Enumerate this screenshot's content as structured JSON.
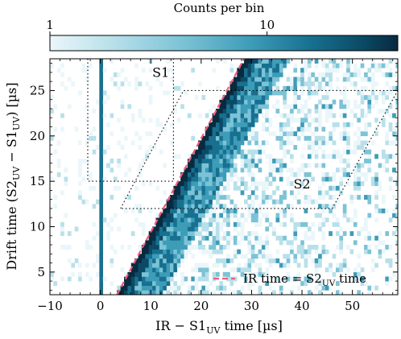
{
  "chart_data": {
    "type": "heatmap",
    "title": "",
    "xlabel": "IR − S1",
    "xlabel_sub": "UV",
    "xlabel_tail": " time [µs]",
    "ylabel_prefix": "Drift time (S2",
    "ylabel_sub1": "UV",
    "ylabel_mid": " − S1",
    "ylabel_sub2": "UV",
    "ylabel_tail": ") [µs]",
    "xlim": [
      -10,
      59
    ],
    "ylim": [
      2.5,
      28.5
    ],
    "xticks": [
      -10,
      0,
      10,
      20,
      30,
      40,
      50
    ],
    "yticks": [
      5,
      10,
      15,
      20,
      25
    ],
    "colorbar": {
      "label": "Counts per bin",
      "scale": "log",
      "range": [
        1,
        40
      ],
      "ticks": [
        1,
        10
      ],
      "tick_labels": [
        "1",
        "10"
      ]
    },
    "colormap": [
      "#eaf6fa",
      "#b8e0ea",
      "#7cc3d6",
      "#3d9cb8",
      "#17708f",
      "#0b4a66",
      "#082a3f"
    ],
    "features": {
      "vertical_band_x": 0.3,
      "diagonal_line": {
        "from": [
          3.3,
          2.5
        ],
        "to": [
          28.5,
          28.5
        ]
      }
    },
    "regions": [
      {
        "label": "S1",
        "polygon": [
          [
            -2.5,
            28.5
          ],
          [
            -2.5,
            15
          ],
          [
            14.5,
            15
          ],
          [
            14.5,
            28.5
          ]
        ],
        "label_at": [
          12,
          26.5
        ]
      },
      {
        "label": "S2",
        "polygon": [
          [
            4.0,
            12
          ],
          [
            16.5,
            25
          ],
          [
            59,
            25
          ],
          [
            46,
            12
          ]
        ],
        "label_at": [
          40,
          14.2
        ]
      }
    ],
    "legend": {
      "position": "bottom-right",
      "entries": [
        {
          "label_prefix": "IR time = S2",
          "label_sub": "UV",
          "label_tail": " time",
          "color": "#f25c7a",
          "style": "dashed"
        }
      ]
    }
  }
}
